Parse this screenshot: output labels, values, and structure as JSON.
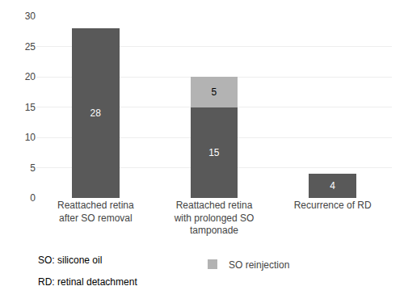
{
  "chart_data": {
    "type": "bar",
    "stacked": true,
    "categories": [
      "Reattached retina\nafter SO removal",
      "Reattached retina\nwith prolonged SO\ntamponade",
      "Recurrence of RD"
    ],
    "series": [
      {
        "color": "#595959",
        "values": [
          28,
          15,
          4
        ]
      },
      {
        "name": "SO reinjection",
        "color": "#b3b3b3",
        "values": [
          0,
          5,
          0
        ]
      }
    ],
    "data_labels": true,
    "ylim": [
      0,
      30
    ],
    "yticks": [
      0,
      5,
      10,
      15,
      20,
      25,
      30
    ],
    "grid": true,
    "legend": "bottom",
    "annotations": [
      "SO: silicone oil",
      "RD: retinal detachment"
    ]
  }
}
